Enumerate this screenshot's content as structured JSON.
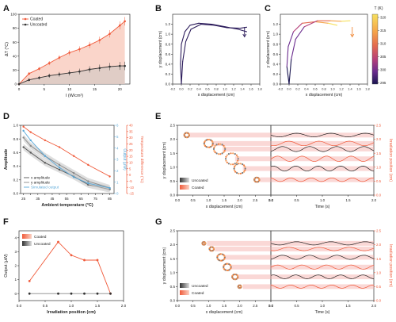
{
  "panels": {
    "A": {
      "letter": "A"
    },
    "B": {
      "letter": "B"
    },
    "C": {
      "letter": "C"
    },
    "D": {
      "letter": "D"
    },
    "E": {
      "letter": "E"
    },
    "F": {
      "letter": "F"
    },
    "G": {
      "letter": "G"
    }
  },
  "colorbar": {
    "title": "T (K)",
    "ticks": [
      "320",
      "315",
      "310",
      "305",
      "300",
      "295"
    ],
    "colors": [
      "#f6e05e",
      "#f5a34a",
      "#e36a4f",
      "#b43f7a",
      "#6b2c8e",
      "#1a1650"
    ]
  },
  "colors": {
    "coated": "#f05a3a",
    "uncoated": "#333333",
    "coated_fill": "#f8c7b8",
    "uncoated_fill": "#d7c9c4",
    "traj_dark": "#2d1d5c",
    "irr_band": "#f4a9a3",
    "output_blue": "#5aa8d8",
    "temp_orange": "#f05a3a"
  },
  "chart_data": [
    {
      "panel": "A",
      "type": "line",
      "xlabel": "I (W/cm²)",
      "ylabel": "ΔT (°C)",
      "xlim": [
        0,
        22
      ],
      "ylim": [
        0,
        100
      ],
      "xticks": [
        "0",
        "5",
        "10",
        "15",
        "20"
      ],
      "yticks": [
        "0",
        "20",
        "40",
        "60",
        "80",
        "100"
      ],
      "legend": [
        "Coated",
        "Uncoated"
      ],
      "x": [
        0,
        2,
        4,
        6,
        8,
        10,
        12,
        14,
        16,
        18,
        20,
        21
      ],
      "series": [
        {
          "name": "Coated",
          "values": [
            0,
            15,
            22,
            30,
            38,
            45,
            50,
            56,
            63,
            72,
            84,
            90
          ]
        },
        {
          "name": "Uncoated",
          "values": [
            0,
            6,
            9,
            12,
            14,
            16,
            18,
            21,
            23,
            25,
            26,
            26
          ]
        }
      ]
    },
    {
      "panel": "B",
      "type": "line",
      "xlabel": "x displacement (cm)",
      "ylabel": "y displacement (cm)",
      "xlim": [
        -0.2,
        1.8
      ],
      "ylim": [
        0,
        1.4
      ],
      "xticks": [
        "-0.2",
        "0.0",
        "0.2",
        "0.4",
        "0.6",
        "0.8",
        "1.0",
        "1.2",
        "1.4",
        "1.6",
        "1.8"
      ],
      "yticks": [
        "0.0",
        "0.2",
        "0.4",
        "0.6",
        "0.8",
        "1.0",
        "1.2"
      ],
      "curves": [
        {
          "x": [
            0.0,
            -0.02,
            0.0,
            0.08,
            0.2,
            0.4,
            0.7,
            1.0,
            1.3,
            1.5
          ],
          "y": [
            0.0,
            0.4,
            0.8,
            1.05,
            1.18,
            1.22,
            1.2,
            1.15,
            1.1,
            1.05
          ]
        },
        {
          "x": [
            0.0,
            0.03,
            0.1,
            0.22,
            0.45,
            0.75,
            1.05,
            1.35,
            1.5
          ],
          "y": [
            0.0,
            0.45,
            0.85,
            1.1,
            1.2,
            1.18,
            1.13,
            1.12,
            1.14
          ]
        }
      ]
    },
    {
      "panel": "C",
      "type": "line",
      "xlabel": "x displacement (cm)",
      "ylabel": "y displacement (cm)",
      "xlim": [
        -0.2,
        1.8
      ],
      "ylim": [
        0,
        1.4
      ],
      "xticks": [
        "-0.2",
        "0.0",
        "0.2",
        "0.4",
        "0.6",
        "0.8",
        "1.0",
        "1.2",
        "1.4",
        "1.6",
        "1.8"
      ],
      "yticks": [
        "0.0",
        "0.2",
        "0.4",
        "0.6",
        "0.8",
        "1.0",
        "1.2"
      ],
      "curves": [
        {
          "x": [
            0.0,
            -0.05,
            -0.02,
            0.1,
            0.3,
            0.6,
            0.9,
            1.1
          ],
          "y": [
            0.0,
            0.35,
            0.75,
            1.05,
            1.22,
            1.25,
            1.22,
            1.18
          ]
        },
        {
          "x": [
            0.0,
            0.05,
            0.15,
            0.35,
            0.65,
            0.95,
            1.2,
            1.4
          ],
          "y": [
            0.0,
            0.5,
            0.9,
            1.15,
            1.27,
            1.27,
            1.26,
            1.27
          ]
        }
      ]
    },
    {
      "panel": "D",
      "type": "line",
      "xlabel": "Ambient temperature (°C)",
      "ylabel": "Amplitude",
      "ylabel_right1": "Output (μW)",
      "ylabel_right2": "Temperature difference (°C)",
      "xlim": [
        23,
        88
      ],
      "ylim": [
        0,
        1.0
      ],
      "xticks": [
        "25",
        "30",
        "35",
        "40",
        "45",
        "50",
        "55",
        "60",
        "65",
        "70",
        "75",
        "80",
        "85"
      ],
      "yticks": [
        "0.0",
        "0.2",
        "0.4",
        "0.6",
        "0.8",
        "1.0"
      ],
      "yticks_right1": [
        "0",
        "1",
        "2",
        "3",
        "4",
        "5",
        "6"
      ],
      "yticks_right2": [
        "-15",
        "-10",
        "-5",
        "0",
        "5",
        "10",
        "15",
        "20",
        "25",
        "30",
        "35",
        "40"
      ],
      "legend": [
        "x amplitude",
        "y amplitude",
        "Simulated output"
      ],
      "x": [
        25,
        30,
        40,
        50,
        60,
        70,
        85
      ],
      "series": [
        {
          "name": "x amplitude",
          "values": [
            0.68,
            0.6,
            0.45,
            0.35,
            0.25,
            0.13,
            0.06
          ]
        },
        {
          "name": "y amplitude",
          "values": [
            0.82,
            0.7,
            0.55,
            0.42,
            0.3,
            0.18,
            0.08
          ]
        },
        {
          "name": "Simulated output",
          "values": [
            0.92,
            0.78,
            0.55,
            0.38,
            0.24,
            0.15,
            0.08
          ]
        },
        {
          "name": "Temperature difference",
          "values": [
            0.98,
            0.9,
            0.78,
            0.68,
            0.55,
            0.42,
            0.25
          ]
        }
      ]
    },
    {
      "panel": "E",
      "type": "scatter",
      "xlabel": "x displacement (cm)",
      "ylabel": "y displacement (cm)",
      "xlabel2": "Time (s)",
      "ylabel_right": "Irradiation position (cm)",
      "xlim": [
        0,
        3
      ],
      "ylim": [
        0,
        2.5
      ],
      "xticks": [
        "0.0",
        "0.5",
        "1.0",
        "1.5",
        "2.0",
        "2.5",
        "3.0"
      ],
      "yticks": [
        "0.0",
        "0.5",
        "1.0",
        "1.5",
        "2.0",
        "2.5"
      ],
      "xticks2": [
        "0.0",
        "0.5",
        "1.0",
        "1.5",
        "2.0"
      ],
      "yticks_right": [
        "0.0",
        "0.5",
        "1.0",
        "1.5",
        "2.0",
        "2.5"
      ],
      "legend": [
        "Uncoated",
        "Coated"
      ],
      "clusters": [
        {
          "x": 0.3,
          "y": 2.15,
          "r": 0.08
        },
        {
          "x": 1.0,
          "y": 1.85,
          "r": 0.14
        },
        {
          "x": 1.35,
          "y": 1.65,
          "r": 0.18
        },
        {
          "x": 1.75,
          "y": 1.3,
          "r": 0.2
        },
        {
          "x": 2.0,
          "y": 0.95,
          "r": 0.18
        },
        {
          "x": 2.55,
          "y": 0.55,
          "r": 0.08
        }
      ]
    },
    {
      "panel": "F",
      "type": "line",
      "xlabel": "Irradiation position (cm)",
      "ylabel": "Output (μW)",
      "xlim": [
        0,
        2
      ],
      "ylim": [
        -0.5,
        4.5
      ],
      "xticks": [
        "0.0",
        "0.5",
        "1.0",
        "1.5",
        "2.0"
      ],
      "yticks": [
        "0",
        "1",
        "2",
        "3",
        "4"
      ],
      "legend": [
        "Coated",
        "Uncoated"
      ],
      "x": [
        0.2,
        0.75,
        1.0,
        1.25,
        1.5,
        1.75
      ],
      "series": [
        {
          "name": "Coated",
          "values": [
            0.9,
            3.7,
            2.75,
            2.4,
            2.4,
            0.0
          ]
        },
        {
          "name": "Uncoated",
          "values": [
            0.0,
            0.0,
            0.0,
            0.0,
            0.0,
            0.0
          ]
        }
      ]
    },
    {
      "panel": "G",
      "type": "scatter",
      "xlabel": "x displacement (cm)",
      "ylabel": "y displacement (cm)",
      "xlabel2": "Time (s)",
      "ylabel_right": "Irradiation position (cm)",
      "xlim": [
        0,
        3
      ],
      "ylim": [
        0,
        2.5
      ],
      "xticks": [
        "0.0",
        "0.5",
        "1.0",
        "1.5",
        "2.0",
        "2.5",
        "3.0"
      ],
      "yticks": [
        "0.0",
        "0.5",
        "1.0",
        "1.5",
        "2.0",
        "2.5"
      ],
      "xticks2": [
        "0.0",
        "0.5",
        "1.0",
        "1.5",
        "2.0"
      ],
      "yticks_right": [
        "0.0",
        "0.5",
        "1.0",
        "1.5",
        "2.0",
        "2.5"
      ],
      "legend": [
        "Uncoated",
        "Coated"
      ],
      "clusters": [
        {
          "x": 0.85,
          "y": 2.05,
          "r": 0.05
        },
        {
          "x": 1.1,
          "y": 1.85,
          "r": 0.07
        },
        {
          "x": 1.4,
          "y": 1.55,
          "r": 0.12
        },
        {
          "x": 1.6,
          "y": 1.2,
          "r": 0.12
        },
        {
          "x": 1.85,
          "y": 0.85,
          "r": 0.09
        },
        {
          "x": 2.0,
          "y": 0.5,
          "r": 0.05
        }
      ]
    }
  ]
}
